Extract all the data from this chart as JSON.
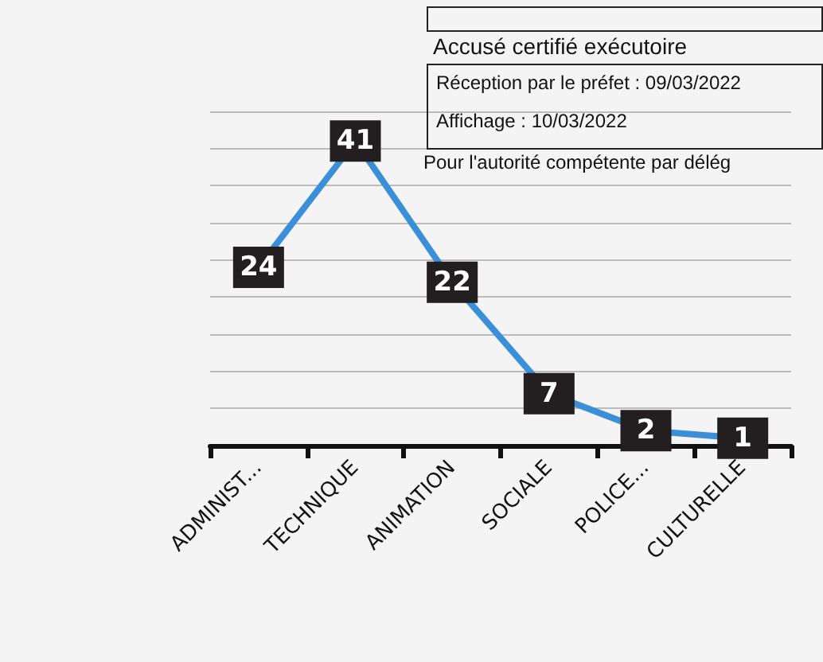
{
  "chart_data": {
    "type": "line",
    "categories": [
      "ADMINIST...",
      "TECHNIQUE",
      "ANIMATION",
      "SOCIALE",
      "POLICE...",
      "CULTURELLE"
    ],
    "series": [
      {
        "color": "#3b8fd9",
        "values": [
          24,
          41,
          22,
          7,
          2,
          1
        ]
      }
    ],
    "data_labels": true,
    "marker": "square",
    "line_style": "solid",
    "grid": "y",
    "tick_labels": "x",
    "ylim": [
      0,
      45
    ],
    "yticks": [
      {
        "value": 0,
        "label": null
      },
      {
        "value": 5,
        "label": null
      },
      {
        "value": 10,
        "label": null
      },
      {
        "value": 15,
        "label": null
      },
      {
        "value": 20,
        "label": null
      },
      {
        "value": 25,
        "label": null
      },
      {
        "value": 30,
        "label": null
      },
      {
        "value": 35,
        "label": null
      },
      {
        "value": 40,
        "label": null
      },
      {
        "value": 45,
        "label": null
      }
    ],
    "annotations": [
      "Accusé certifié exécutoire",
      "Réception par le préfet : 09/03/2022",
      "Affichage : 10/03/2022",
      "Pour l'autorité compétente par délég"
    ]
  }
}
